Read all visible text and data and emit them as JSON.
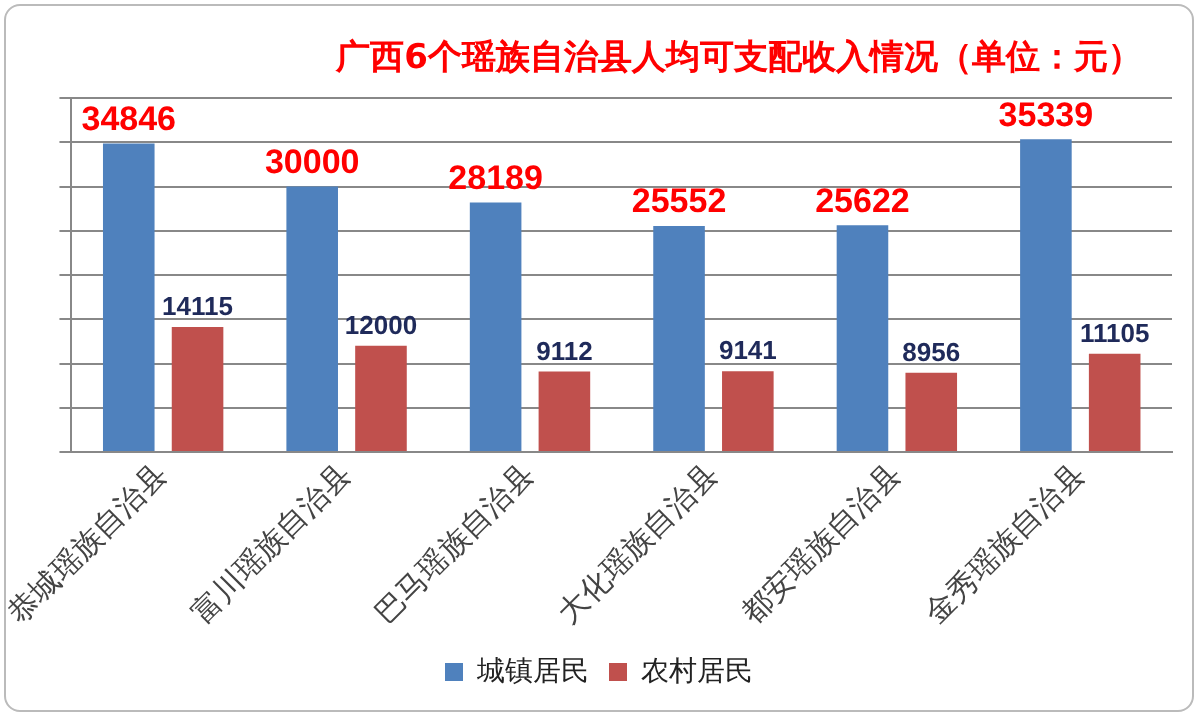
{
  "chart_data": {
    "type": "bar",
    "title": "广西6个瑶族自治县人均可支配收入情况（单位：元）",
    "categories": [
      "恭城瑶族自治县",
      "富川瑶族自治县",
      "巴马瑶族自治县",
      "大化瑶族自治县",
      "都安瑶族自治县",
      "金秀瑶族自治县"
    ],
    "series": [
      {
        "name": "城镇居民",
        "color": "#4f81bd",
        "values": [
          34846,
          30000,
          28189,
          25552,
          25622,
          35339
        ]
      },
      {
        "name": "农村居民",
        "color": "#c0504d",
        "values": [
          14115,
          12000,
          9112,
          9141,
          8956,
          11105
        ]
      }
    ],
    "ylim": [
      0,
      40000
    ],
    "yticks": [
      {
        "value": 0,
        "label": null
      },
      {
        "value": 5000,
        "label": null
      },
      {
        "value": 10000,
        "label": null
      },
      {
        "value": 15000,
        "label": null
      },
      {
        "value": 20000,
        "label": null
      },
      {
        "value": 25000,
        "label": null
      },
      {
        "value": 30000,
        "label": null
      },
      {
        "value": 35000,
        "label": null
      },
      {
        "value": 40000,
        "label": null
      }
    ],
    "tick_labels": "x",
    "grid": "y",
    "legend": "bottom",
    "data_labels": true
  }
}
